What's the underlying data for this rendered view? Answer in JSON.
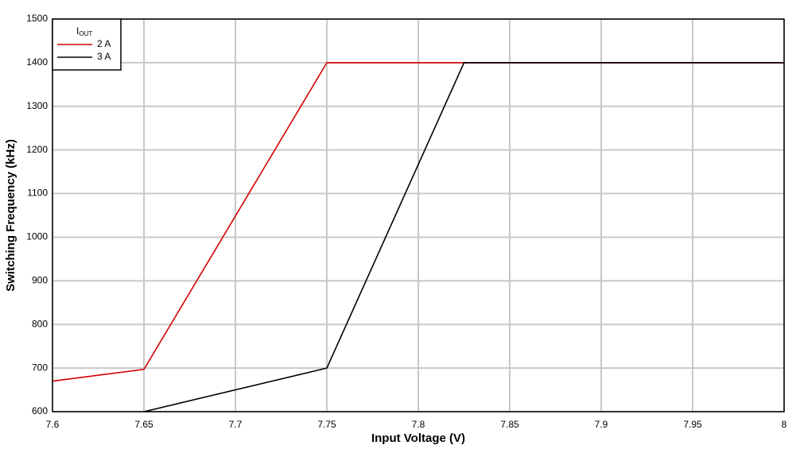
{
  "chart_data": {
    "type": "line",
    "xlabel": "Input Voltage (V)",
    "ylabel": "Switching Frequency (kHz)",
    "legend_title": "I",
    "legend_title_sub": "OUT",
    "legend": "upper left",
    "series": [
      {
        "name": "2 A",
        "color": "#d40000",
        "x": [
          7.6,
          7.65,
          7.75,
          8
        ],
        "values": [
          670,
          697,
          1400,
          1400
        ]
      },
      {
        "name": "3 A",
        "color": "#000000",
        "x": [
          7.65,
          7.75,
          7.825,
          8
        ],
        "values": [
          600,
          700,
          1400,
          1400
        ]
      }
    ],
    "xlim": [
      7.6,
      8
    ],
    "xticks": [
      7.6,
      7.65,
      7.7,
      7.75,
      7.8,
      7.85,
      7.9,
      7.95,
      8
    ],
    "ylim": [
      600,
      1500
    ],
    "yticks": [
      600,
      700,
      800,
      900,
      1000,
      1100,
      1200,
      1300,
      1400,
      1500
    ],
    "grid": true
  }
}
